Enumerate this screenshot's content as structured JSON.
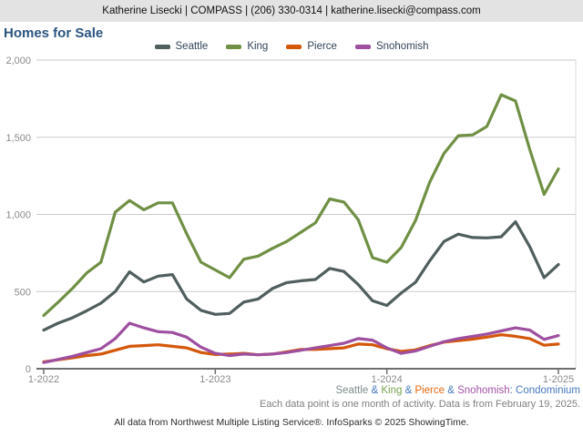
{
  "header": {
    "text": "Katherine Lisecki | COMPASS | (206) 330-0314 | katherine.lisecki@compass.com"
  },
  "title": "Homes for Sale",
  "chart_data": {
    "type": "line",
    "title": "Homes for Sale",
    "grid": "horizontal",
    "legend_position": "top",
    "ylim": [
      0,
      2000
    ],
    "yticks": [
      {
        "value": 0,
        "label": "0"
      },
      {
        "value": 500,
        "label": "500"
      },
      {
        "value": 1000,
        "label": "1,000"
      },
      {
        "value": 1500,
        "label": "1,500"
      },
      {
        "value": 2000,
        "label": "2,000"
      }
    ],
    "x": [
      "1-2022",
      "2-2022",
      "3-2022",
      "4-2022",
      "5-2022",
      "6-2022",
      "7-2022",
      "8-2022",
      "9-2022",
      "10-2022",
      "11-2022",
      "12-2022",
      "1-2023",
      "2-2023",
      "3-2023",
      "4-2023",
      "5-2023",
      "6-2023",
      "7-2023",
      "8-2023",
      "9-2023",
      "10-2023",
      "11-2023",
      "12-2023",
      "1-2024",
      "2-2024",
      "3-2024",
      "4-2024",
      "5-2024",
      "6-2024",
      "7-2024",
      "8-2024",
      "9-2024",
      "10-2024",
      "11-2024",
      "12-2024",
      "1-2025"
    ],
    "x_ticks": [
      {
        "index": 0,
        "label": "1-2022"
      },
      {
        "index": 12,
        "label": "1-2023"
      },
      {
        "index": 24,
        "label": "1-2024"
      },
      {
        "index": 36,
        "label": "1-2025"
      }
    ],
    "series": [
      {
        "name": "Seattle",
        "color": "#505e5e",
        "values": [
          250,
          295,
          330,
          375,
          425,
          500,
          628,
          562,
          600,
          610,
          452,
          378,
          352,
          358,
          432,
          452,
          520,
          558,
          570,
          578,
          650,
          630,
          545,
          440,
          410,
          490,
          560,
          700,
          825,
          872,
          850,
          848,
          855,
          952,
          790,
          590,
          675
        ]
      },
      {
        "name": "King",
        "color": "#6f9044",
        "values": [
          345,
          430,
          520,
          620,
          690,
          1015,
          1090,
          1030,
          1075,
          1075,
          875,
          690,
          640,
          590,
          710,
          730,
          780,
          825,
          885,
          945,
          1100,
          1080,
          965,
          720,
          690,
          785,
          960,
          1210,
          1395,
          1510,
          1515,
          1570,
          1775,
          1735,
          1420,
          1130,
          1295
        ]
      },
      {
        "name": "Pierce",
        "color": "#d4570a",
        "values": [
          45,
          58,
          70,
          85,
          95,
          120,
          145,
          150,
          155,
          145,
          135,
          105,
          92,
          95,
          100,
          90,
          95,
          110,
          125,
          125,
          130,
          135,
          160,
          155,
          130,
          112,
          122,
          150,
          172,
          182,
          192,
          205,
          220,
          210,
          195,
          152,
          160
        ]
      },
      {
        "name": "Snohomish",
        "color": "#9e4f9f",
        "values": [
          40,
          60,
          80,
          105,
          130,
          195,
          295,
          265,
          240,
          235,
          205,
          140,
          100,
          85,
          95,
          90,
          95,
          105,
          120,
          135,
          150,
          165,
          195,
          185,
          135,
          100,
          115,
          145,
          175,
          195,
          210,
          225,
          245,
          265,
          250,
          190,
          215
        ]
      }
    ],
    "axis_colors": {
      "gridline": "#cbcbcb",
      "axis": "#6e6e6e",
      "tick_label": "#8a8a8a"
    }
  },
  "footnotes": {
    "series_line": [
      {
        "text": "Seattle",
        "color": "#7e8b8b"
      },
      {
        "text": " & ",
        "color": "#4678be"
      },
      {
        "text": "King",
        "color": "#77a24e"
      },
      {
        "text": " & ",
        "color": "#4678be"
      },
      {
        "text": "Pierce",
        "color": "#e2660f"
      },
      {
        "text": " & ",
        "color": "#4678be"
      },
      {
        "text": "Snohomish",
        "color": "#a253a8"
      },
      {
        "text": ": ",
        "color": "#4678be"
      },
      {
        "text": "Condominium",
        "color": "#4678be"
      }
    ],
    "activity_line": "Each data point is one month of activity. Data is from February 19, 2025.",
    "attribution_line": "All data from Northwest Multiple Listing Service®. InfoSparks © 2025 ShowingTime."
  }
}
